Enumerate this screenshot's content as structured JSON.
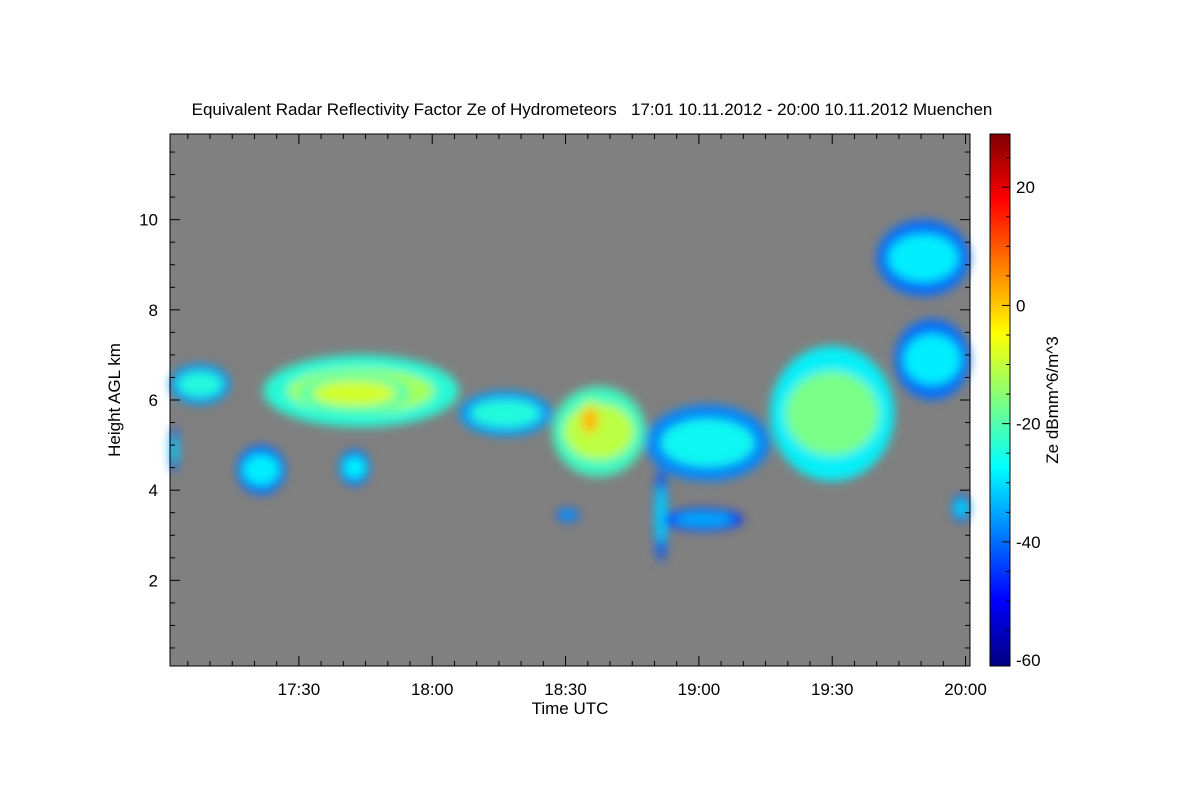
{
  "chart_data": {
    "type": "heatmap",
    "title": "Equivalent Radar Reflectivity Factor Ze of Hydrometeors   17:01 10.11.2012 - 20:00 10.11.2012 Muenchen",
    "xlabel": "Time UTC",
    "ylabel": "Height AGL km",
    "colorbar_label": "Ze dBmm^6/m^3",
    "background_color": "#808080",
    "xlim_minutes_utc": [
      1021,
      1201
    ],
    "x_ticks": [
      {
        "label": "17:30",
        "minute": 1050
      },
      {
        "label": "18:00",
        "minute": 1080
      },
      {
        "label": "18:30",
        "minute": 1110
      },
      {
        "label": "19:00",
        "minute": 1140
      },
      {
        "label": "19:30",
        "minute": 1170
      },
      {
        "label": "20:00",
        "minute": 1200
      }
    ],
    "ylim": [
      0.1,
      11.9
    ],
    "y_ticks": [
      2,
      4,
      6,
      8,
      10
    ],
    "colorbar_range": [
      -61,
      29
    ],
    "colorbar_ticks": [
      -60,
      -40,
      -20,
      0,
      20
    ],
    "colormap_stops": [
      "#00007f",
      "#0000ff",
      "#007fff",
      "#00ffff",
      "#7fff7f",
      "#ffff00",
      "#ff7f00",
      "#ff0000",
      "#7f0000"
    ],
    "features": [
      {
        "t0": 1021.0,
        "t1": 1034.5,
        "h_top": 6.8,
        "h_bot": 5.9,
        "ze": -24
      },
      {
        "t0": 1042.0,
        "t1": 1086.0,
        "h_top": 7.0,
        "h_bot": 5.4,
        "ze": -12
      },
      {
        "t0": 1050.0,
        "t1": 1075.0,
        "h_top": 6.6,
        "h_bot": 5.7,
        "ze": -8
      },
      {
        "t0": 1086.0,
        "t1": 1107.0,
        "h_top": 6.2,
        "h_bot": 5.2,
        "ze": -24
      },
      {
        "t0": 1107.0,
        "t1": 1128.0,
        "h_top": 6.3,
        "h_bot": 4.3,
        "ze": -10
      },
      {
        "t0": 1113.0,
        "t1": 1118.0,
        "h_top": 6.0,
        "h_bot": 5.1,
        "ze": 2
      },
      {
        "t0": 1128.0,
        "t1": 1156.0,
        "h_top": 5.9,
        "h_bot": 4.2,
        "ze": -26
      },
      {
        "t0": 1156.0,
        "t1": 1184.0,
        "h_top": 7.2,
        "h_bot": 4.2,
        "ze": -16
      },
      {
        "t0": 1184.0,
        "t1": 1201.0,
        "h_top": 7.8,
        "h_bot": 6.0,
        "ze": -28
      },
      {
        "t0": 1180.0,
        "t1": 1201.0,
        "h_top": 10.0,
        "h_bot": 8.3,
        "ze": -28
      },
      {
        "t0": 1021.0,
        "t1": 1023.0,
        "h_top": 5.4,
        "h_bot": 4.4,
        "ze": -30
      },
      {
        "t0": 1036.0,
        "t1": 1047.0,
        "h_top": 5.0,
        "h_bot": 3.9,
        "ze": -28
      },
      {
        "t0": 1059.0,
        "t1": 1066.0,
        "h_top": 4.9,
        "h_bot": 4.1,
        "ze": -28
      },
      {
        "t0": 1130.0,
        "t1": 1133.0,
        "h_top": 4.5,
        "h_bot": 2.4,
        "ze": -30
      },
      {
        "t0": 1132.0,
        "t1": 1150.0,
        "h_top": 3.6,
        "h_bot": 3.1,
        "ze": -34
      },
      {
        "t0": 1108.0,
        "t1": 1113.0,
        "h_top": 3.6,
        "h_bot": 3.3,
        "ze": -34
      },
      {
        "t0": 1197.0,
        "t1": 1201.0,
        "h_top": 3.9,
        "h_bot": 3.3,
        "ze": -30
      }
    ]
  }
}
